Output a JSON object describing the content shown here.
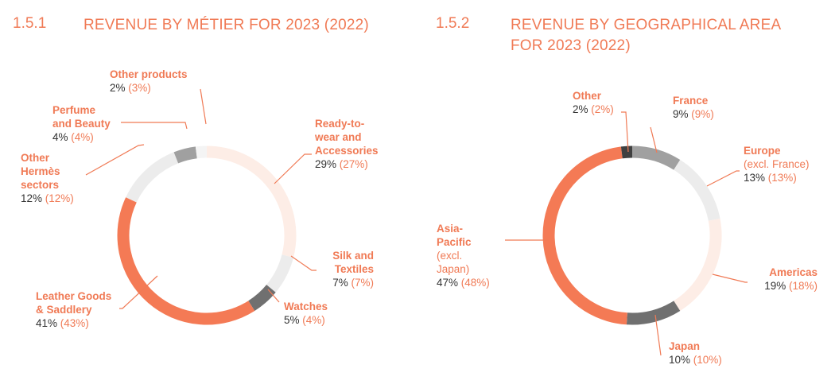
{
  "charts": [
    {
      "number": "1.5.1",
      "title": "REVENUE BY MÉTIER FOR 2023 (2022)",
      "labels": [
        {
          "name": "Ready-to-wear and Accessories",
          "lines": [
            "Ready-to-",
            "wear and",
            "Accessories"
          ],
          "current": "29%",
          "previous": "(27%)"
        },
        {
          "name": "Silk and Textiles",
          "lines": [
            "Silk and",
            "Textiles"
          ],
          "current": "7%",
          "previous": "(7%)"
        },
        {
          "name": "Watches",
          "lines": [
            "Watches"
          ],
          "current": "5%",
          "previous": "(4%)"
        },
        {
          "name": "Leather Goods & Saddlery",
          "lines": [
            "Leather Goods",
            "& Saddlery"
          ],
          "current": "41%",
          "previous": "(43%)"
        },
        {
          "name": "Other Hermès sectors",
          "lines": [
            "Other",
            "Hermès",
            "sectors"
          ],
          "current": "12%",
          "previous": "(12%)"
        },
        {
          "name": "Perfume and Beauty",
          "lines": [
            "Perfume",
            "and Beauty"
          ],
          "current": "4%",
          "previous": "(4%)"
        },
        {
          "name": "Other products",
          "lines": [
            "Other products"
          ],
          "current": "2%",
          "previous": "(3%)"
        }
      ]
    },
    {
      "number": "1.5.2",
      "title": "REVENUE BY GEOGRAPHICAL AREA FOR 2023 (2022)",
      "title_lines": [
        "REVENUE BY GEOGRAPHICAL AREA",
        "FOR 2023 (2022)"
      ],
      "labels": [
        {
          "name": "France",
          "lines": [
            "France"
          ],
          "current": "9%",
          "previous": "(9%)"
        },
        {
          "name": "Europe (excl. France)",
          "lines": [
            "Europe"
          ],
          "sub": "(excl. France)",
          "current": "13%",
          "previous": "(13%)"
        },
        {
          "name": "Americas",
          "lines": [
            "Americas"
          ],
          "current": "19%",
          "previous": "(18%)"
        },
        {
          "name": "Japan",
          "lines": [
            "Japan"
          ],
          "current": "10%",
          "previous": "(10%)"
        },
        {
          "name": "Asia-Pacific (excl. Japan)",
          "lines": [
            "Asia-",
            "Pacific"
          ],
          "sub_lines": [
            "(excl.",
            "Japan)"
          ],
          "current": "47%",
          "previous": "(48%)"
        },
        {
          "name": "Other",
          "lines": [
            "Other"
          ],
          "current": "2%",
          "previous": "(2%)"
        }
      ]
    }
  ],
  "chart_data": [
    {
      "type": "pie",
      "title": "REVENUE BY MÉTIER FOR 2023 (2022)",
      "categories": [
        "Ready-to-wear and Accessories",
        "Silk and Textiles",
        "Watches",
        "Leather Goods & Saddlery",
        "Other Hermès sectors",
        "Perfume and Beauty",
        "Other products"
      ],
      "series": [
        {
          "name": "2023",
          "values": [
            29,
            7,
            5,
            41,
            12,
            4,
            2
          ]
        },
        {
          "name": "2022",
          "values": [
            27,
            7,
            4,
            43,
            12,
            4,
            3
          ]
        }
      ],
      "colors": [
        "#fdede6",
        "#ececec",
        "#707070",
        "#f47a55",
        "#ececec",
        "#a0a0a0",
        "#f4f4f4"
      ]
    },
    {
      "type": "pie",
      "title": "REVENUE BY GEOGRAPHICAL AREA FOR 2023 (2022)",
      "categories": [
        "France",
        "Europe (excl. France)",
        "Americas",
        "Japan",
        "Asia-Pacific (excl. Japan)",
        "Other"
      ],
      "series": [
        {
          "name": "2023",
          "values": [
            9,
            13,
            19,
            10,
            47,
            2
          ]
        },
        {
          "name": "2022",
          "values": [
            9,
            13,
            18,
            10,
            48,
            2
          ]
        }
      ],
      "colors": [
        "#a0a0a0",
        "#ececec",
        "#fdede6",
        "#707070",
        "#f47a55",
        "#404040"
      ]
    }
  ]
}
